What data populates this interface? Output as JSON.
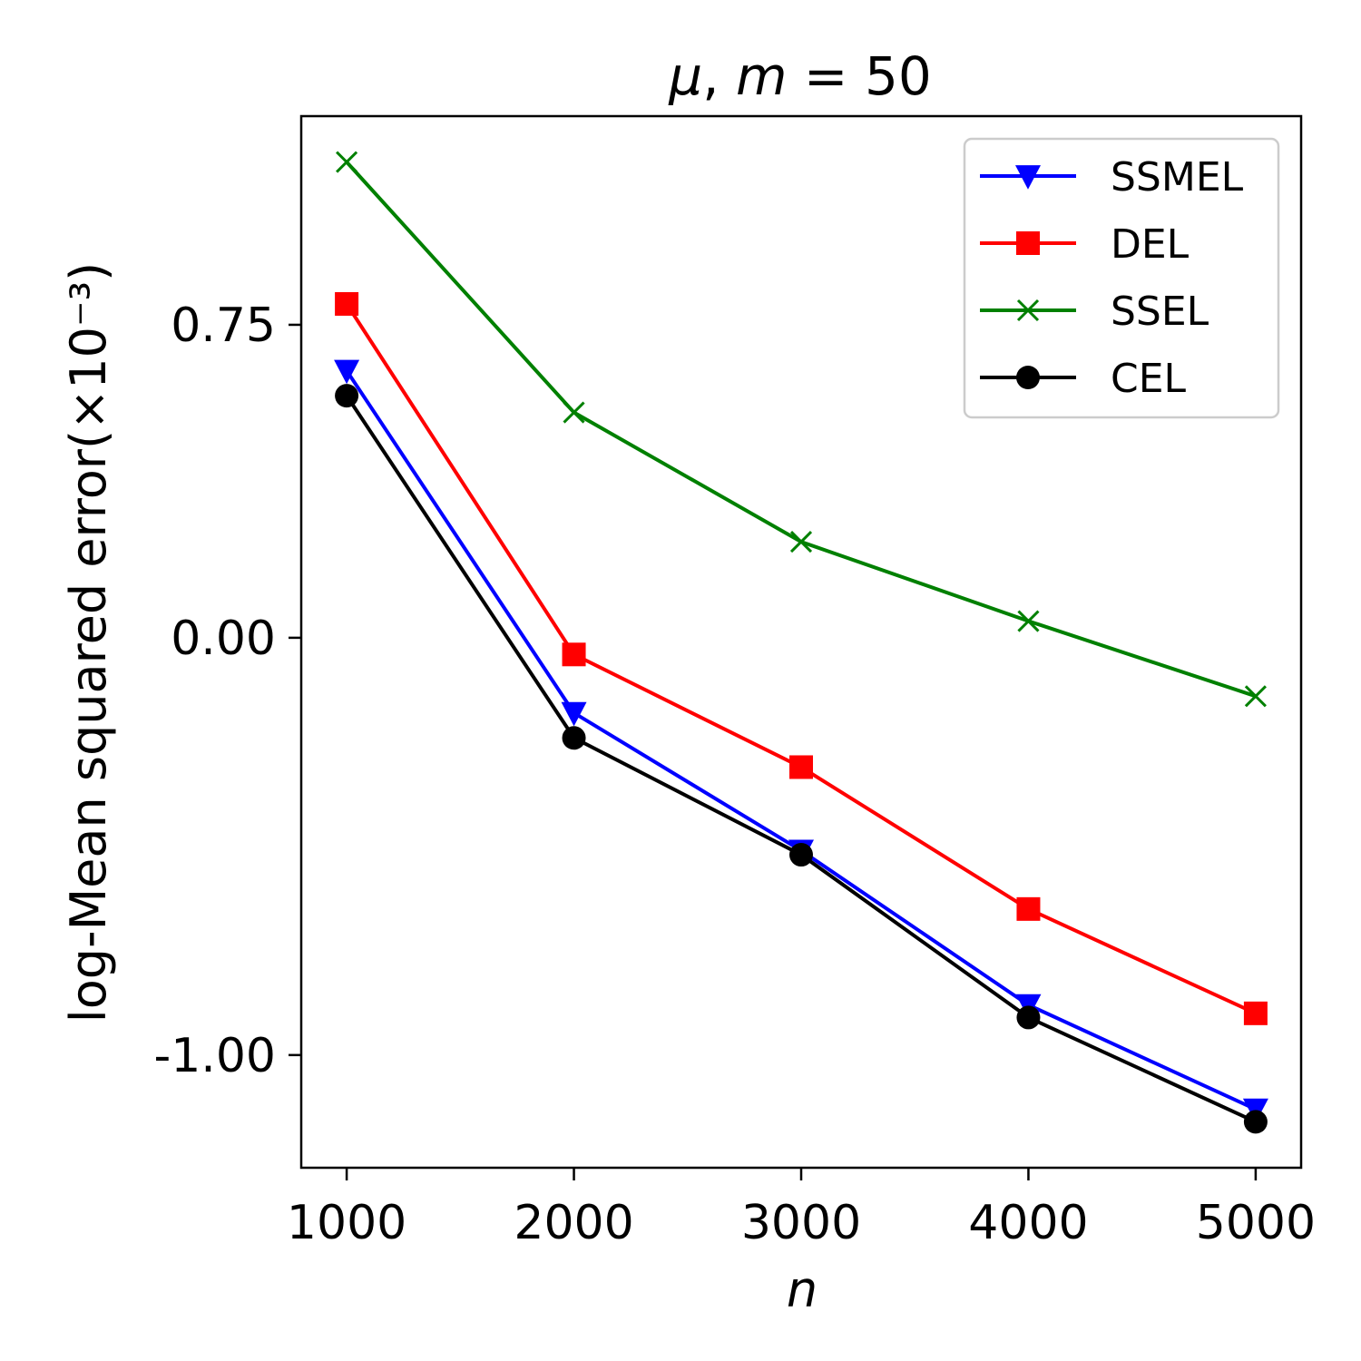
{
  "chart_data": {
    "type": "line",
    "title": "μ, m = 50",
    "title_parts": {
      "mu": "μ",
      "sep": ", ",
      "m": "m",
      "eq": " = 50"
    },
    "xlabel": "n",
    "ylabel": "log-Mean squared error(×10⁻³)",
    "x": [
      1000,
      2000,
      3000,
      4000,
      5000
    ],
    "xlim": [
      800,
      5200
    ],
    "ylim": [
      -1.27,
      1.25
    ],
    "xticks": [
      1000,
      2000,
      3000,
      4000,
      5000
    ],
    "xtick_labels": [
      "1000",
      "2000",
      "3000",
      "4000",
      "5000"
    ],
    "yticks": [
      -1.0,
      0.0,
      0.75
    ],
    "ytick_labels": [
      "-1.00",
      "0.00",
      "0.75"
    ],
    "grid": false,
    "legend_position": "top-right",
    "series": [
      {
        "name": "SSMEL",
        "color": "#0000ff",
        "marker": "triangle-down",
        "values": [
          0.64,
          -0.18,
          -0.51,
          -0.88,
          -1.13
        ]
      },
      {
        "name": "DEL",
        "color": "#ff0000",
        "marker": "square",
        "values": [
          0.8,
          -0.04,
          -0.31,
          -0.65,
          -0.9
        ]
      },
      {
        "name": "SSEL",
        "color": "#008000",
        "marker": "x",
        "values": [
          1.14,
          0.54,
          0.23,
          0.04,
          -0.14
        ]
      },
      {
        "name": "CEL",
        "color": "#000000",
        "marker": "circle",
        "values": [
          0.58,
          -0.24,
          -0.52,
          -0.91,
          -1.16
        ]
      }
    ]
  }
}
